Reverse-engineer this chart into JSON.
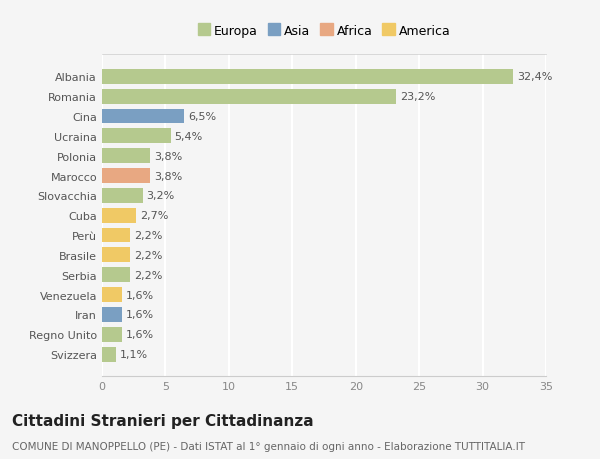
{
  "categories": [
    "Svizzera",
    "Regno Unito",
    "Iran",
    "Venezuela",
    "Serbia",
    "Brasile",
    "Perù",
    "Cuba",
    "Slovacchia",
    "Marocco",
    "Polonia",
    "Ucraina",
    "Cina",
    "Romania",
    "Albania"
  ],
  "values": [
    1.1,
    1.6,
    1.6,
    1.6,
    2.2,
    2.2,
    2.2,
    2.7,
    3.2,
    3.8,
    3.8,
    5.4,
    6.5,
    23.2,
    32.4
  ],
  "labels": [
    "1,1%",
    "1,6%",
    "1,6%",
    "1,6%",
    "2,2%",
    "2,2%",
    "2,2%",
    "2,7%",
    "3,2%",
    "3,8%",
    "3,8%",
    "5,4%",
    "6,5%",
    "23,2%",
    "32,4%"
  ],
  "colors": [
    "#b5c98e",
    "#b5c98e",
    "#7a9fc2",
    "#f0c965",
    "#b5c98e",
    "#f0c965",
    "#f0c965",
    "#f0c965",
    "#b5c98e",
    "#e8a882",
    "#b5c98e",
    "#b5c98e",
    "#7a9fc2",
    "#b5c98e",
    "#b5c98e"
  ],
  "legend_labels": [
    "Europa",
    "Asia",
    "Africa",
    "America"
  ],
  "legend_colors": [
    "#b5c98e",
    "#7a9fc2",
    "#e8a882",
    "#f0c965"
  ],
  "title": "Cittadini Stranieri per Cittadinanza",
  "subtitle": "COMUNE DI MANOPPELLO (PE) - Dati ISTAT al 1° gennaio di ogni anno - Elaborazione TUTTITALIA.IT",
  "xlim": [
    0,
    35
  ],
  "xticks": [
    0,
    5,
    10,
    15,
    20,
    25,
    30,
    35
  ],
  "background_color": "#f5f5f5",
  "grid_color": "#ffffff",
  "bar_height": 0.75,
  "title_fontsize": 11,
  "subtitle_fontsize": 7.5,
  "label_fontsize": 8,
  "tick_fontsize": 8,
  "legend_fontsize": 9
}
